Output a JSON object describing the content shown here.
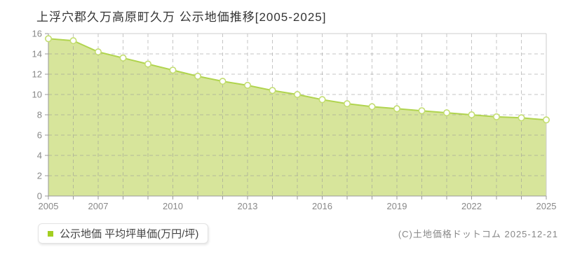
{
  "title": "上浮穴郡久万高原町久万 公示地価推移[2005-2025]",
  "legend": {
    "label": "公示地価 平均坪単価(万円/坪)"
  },
  "footer": {
    "credit": "(C)土地価格ドットコム 2025-12-21"
  },
  "colors": {
    "area_fill": "#d7e59b",
    "line": "#b0d44e",
    "marker_fill": "#ffffff",
    "marker_stroke": "#c3dd70",
    "legend_swatch": "#a3ce21",
    "grid": "#c9c9c9",
    "axis": "#999999",
    "border": "#cccccc",
    "label_text": "#888888",
    "title_text": "#333333"
  },
  "chart_data": {
    "type": "area",
    "title": "上浮穴郡久万高原町久万 公示地価推移[2005-2025]",
    "series": [
      {
        "name": "公示地価 平均坪単価(万円/坪)",
        "values": [
          15.5,
          15.3,
          14.2,
          13.6,
          13.0,
          12.4,
          11.8,
          11.3,
          10.9,
          10.4,
          10.0,
          9.5,
          9.1,
          8.8,
          8.6,
          8.4,
          8.2,
          8.0,
          7.8,
          7.7,
          7.5
        ]
      }
    ],
    "x": [
      2005,
      2006,
      2007,
      2008,
      2009,
      2010,
      2011,
      2012,
      2013,
      2014,
      2015,
      2016,
      2017,
      2018,
      2019,
      2020,
      2021,
      2022,
      2023,
      2024,
      2025
    ],
    "x_tick_labels": [
      "2005",
      "2007",
      "2010",
      "2013",
      "2016",
      "2019",
      "2022",
      "2025"
    ],
    "y_ticks": [
      0,
      2,
      4,
      6,
      8,
      10,
      12,
      14,
      16
    ],
    "ylim": [
      0,
      16
    ],
    "xlabel": "",
    "ylabel": "万円/坪",
    "grid": true,
    "legend_position": "bottom-left"
  }
}
